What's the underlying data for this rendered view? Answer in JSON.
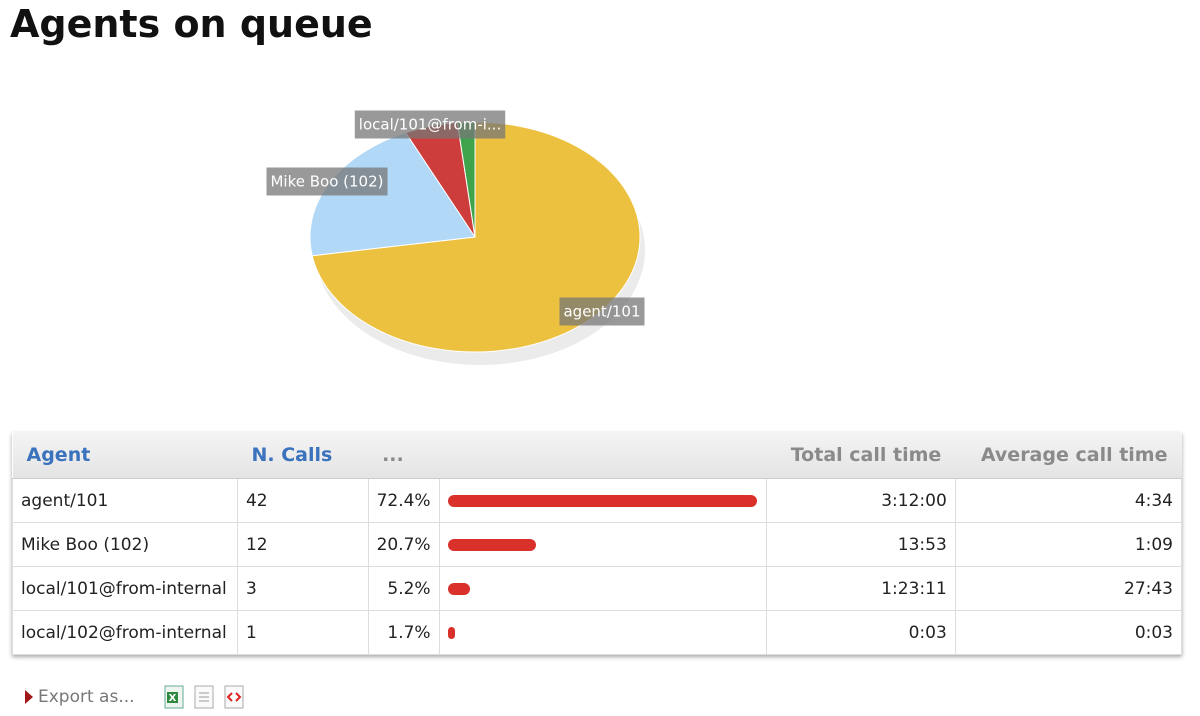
{
  "header": {
    "title": "Agents on queue"
  },
  "chart_data": {
    "type": "pie",
    "labels": [
      "agent/101",
      "Mike Boo (102)",
      "local/101@from-i...",
      null
    ],
    "values": [
      72.4,
      20.7,
      5.2,
      1.7
    ],
    "colors": [
      "#ecc13f",
      "#b1d8f6",
      "#cc3d3b",
      "#3ea34a"
    ]
  },
  "table": {
    "headers": [
      "Agent",
      "N. Calls",
      "...",
      "Total call time",
      "Average call time"
    ],
    "rows": [
      {
        "agent": "agent/101",
        "calls": 42,
        "percent": 72.4,
        "percent_label": "72.4%",
        "total": "3:12:00",
        "average": "4:34"
      },
      {
        "agent": "Mike Boo (102)",
        "calls": 12,
        "percent": 20.7,
        "percent_label": "20.7%",
        "total": "13:53",
        "average": "1:09"
      },
      {
        "agent": "local/101@from-internal",
        "calls": 3,
        "percent": 5.2,
        "percent_label": "5.2%",
        "total": "1:23:11",
        "average": "27:43"
      },
      {
        "agent": "local/102@from-internal",
        "calls": 1,
        "percent": 1.7,
        "percent_label": "1.7%",
        "total": "0:03",
        "average": "0:03"
      }
    ]
  },
  "footer": {
    "export_label": "Export as..."
  }
}
